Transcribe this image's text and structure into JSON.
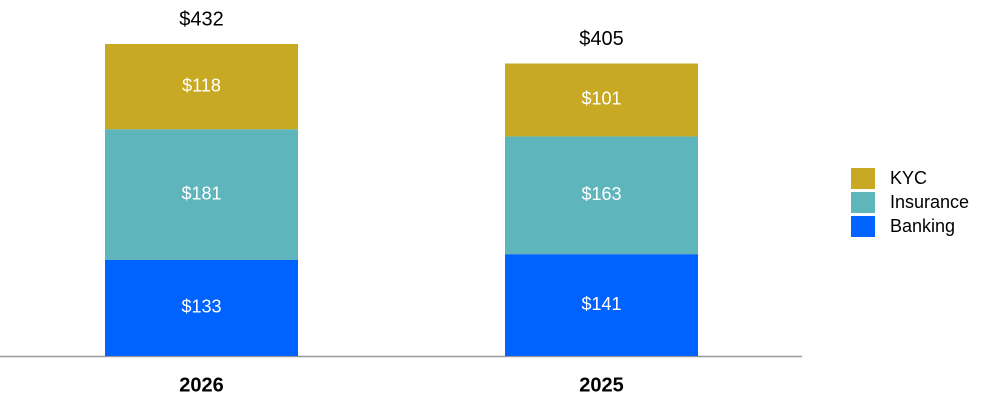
{
  "chart_data": {
    "type": "stacked_bar",
    "categories": [
      "2026",
      "2025"
    ],
    "series": [
      {
        "name": "Banking",
        "color": "#0062ff",
        "values": [
          133,
          141
        ],
        "value_labels": [
          "$133",
          "$141"
        ]
      },
      {
        "name": "Insurance",
        "color": "#5eb5bb",
        "values": [
          181,
          163
        ],
        "value_labels": [
          "$181",
          "$163"
        ]
      },
      {
        "name": "KYC",
        "color": "#c8a923",
        "values": [
          118,
          101
        ],
        "value_labels": [
          "$118",
          "$101"
        ]
      }
    ],
    "totals": [
      432,
      405
    ],
    "total_labels": [
      "$432",
      "$405"
    ],
    "legend": "right"
  }
}
